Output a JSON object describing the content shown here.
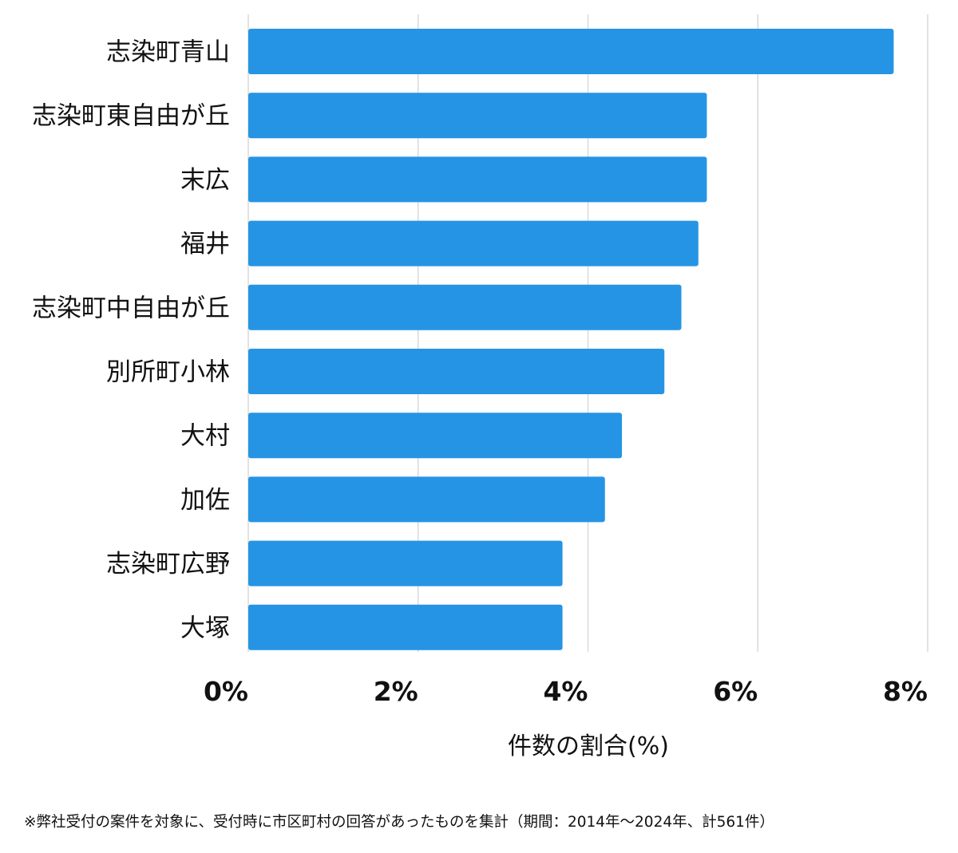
{
  "chart_data": {
    "type": "bar",
    "orientation": "horizontal",
    "categories": [
      "志染町青山",
      "志染町東自由が丘",
      "末広",
      "福井",
      "志染町中自由が丘",
      "別所町小林",
      "大村",
      "加佐",
      "志染町広野",
      "大塚"
    ],
    "values": [
      7.6,
      5.4,
      5.4,
      5.3,
      5.1,
      4.9,
      4.4,
      4.2,
      3.7,
      3.7
    ],
    "xlim": [
      0,
      8
    ],
    "x_ticks": [
      0,
      2,
      4,
      6,
      8
    ],
    "x_tick_labels": [
      "0%",
      "2%",
      "4%",
      "6%",
      "8%"
    ],
    "xlabel": "件数の割合(%)",
    "ylabel": "",
    "title": "",
    "grid": "vertical",
    "legend": "none",
    "bar_color": "#2694e5"
  },
  "footnote": "※弊社受付の案件を対象に、受付時に市区町村の回答があったものを集計（期間：2014年〜2024年、計561件）"
}
